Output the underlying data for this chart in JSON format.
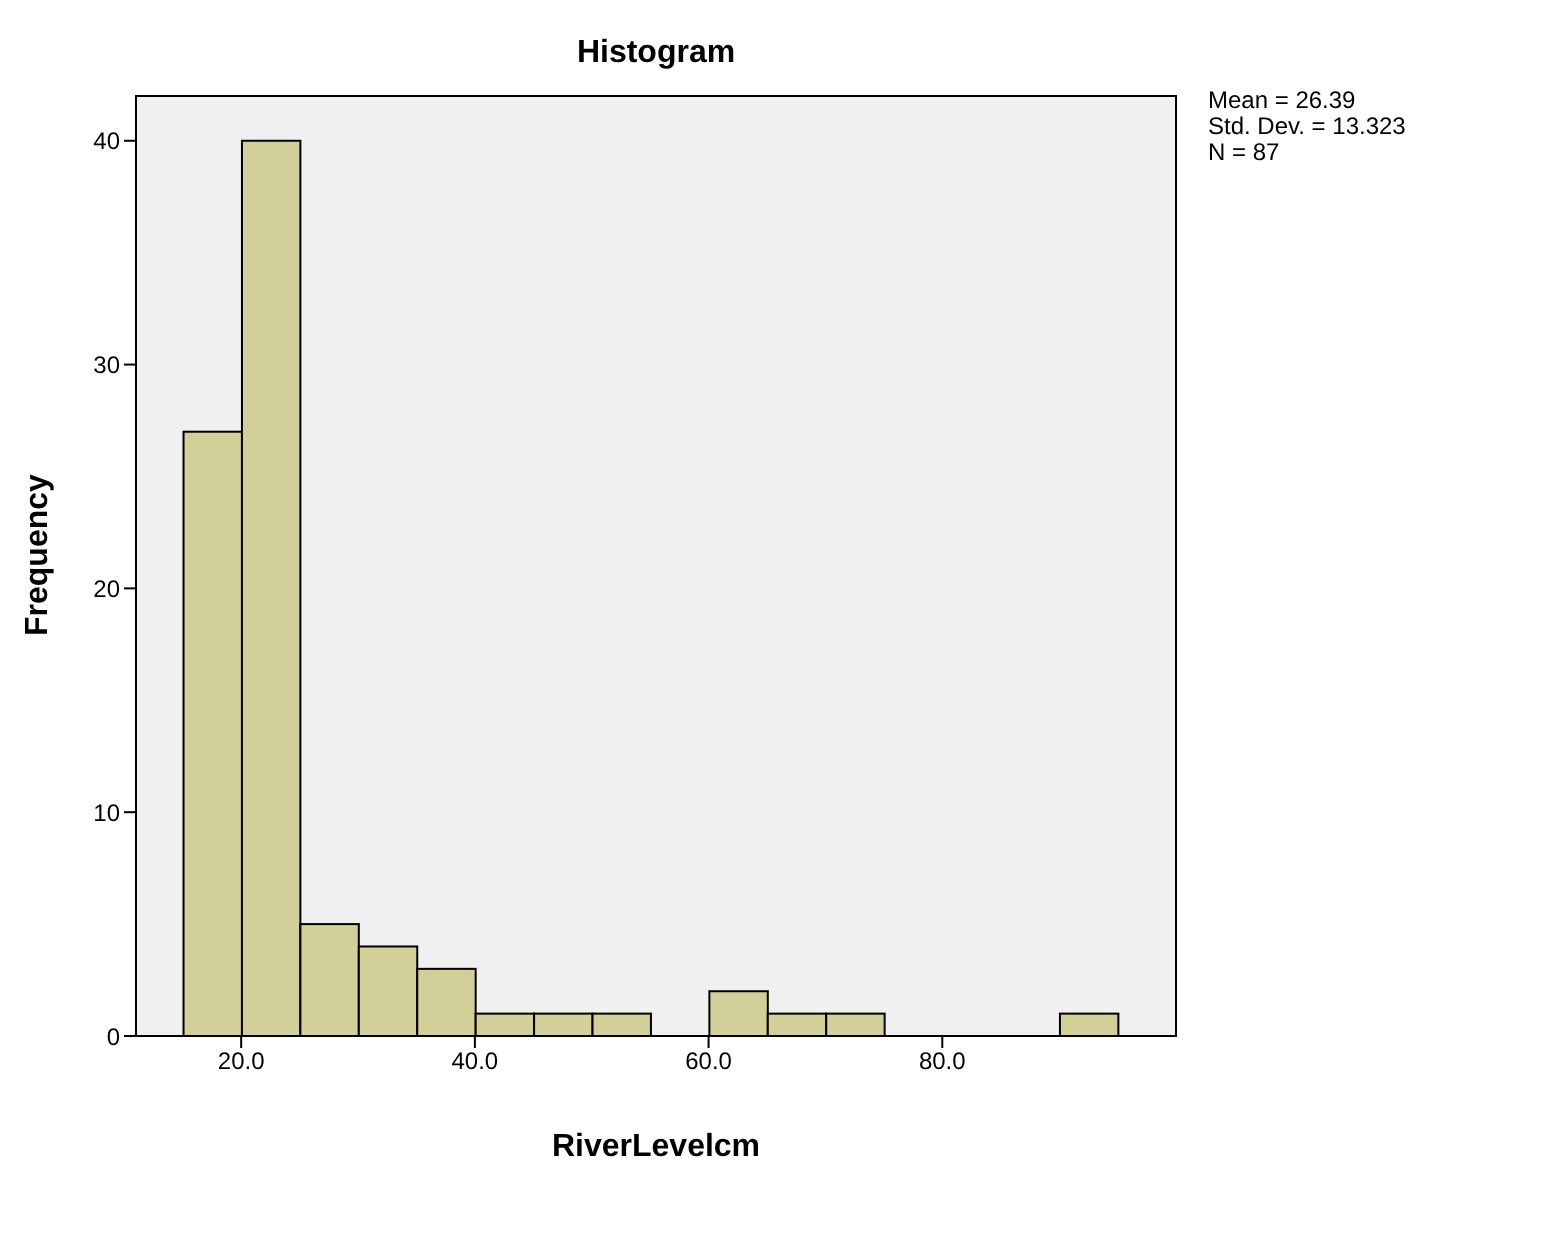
{
  "chart_data": {
    "type": "histogram",
    "title": "Histogram",
    "xlabel": "RiverLevelcm",
    "ylabel": "Frequency",
    "bins": [
      15,
      20,
      25,
      30,
      35,
      40,
      45,
      50,
      55,
      60,
      65,
      70,
      75,
      80,
      85,
      90,
      95
    ],
    "values": [
      27,
      40,
      5,
      4,
      3,
      1,
      1,
      1,
      0,
      2,
      1,
      1,
      0,
      0,
      0,
      1
    ],
    "color": "#d3cf9a",
    "xlim": [
      11,
      100
    ],
    "xticks": [
      {
        "value": 20,
        "label": "20.0"
      },
      {
        "value": 40,
        "label": "40.0"
      },
      {
        "value": 60,
        "label": "60.0"
      },
      {
        "value": 80,
        "label": "80.0"
      }
    ],
    "ylim": [
      0,
      42
    ],
    "yticks": [
      0,
      10,
      20,
      30,
      40
    ],
    "annotations": [
      "Mean = 26.39",
      "Std. Dev. = 13.323",
      "N = 87"
    ]
  }
}
